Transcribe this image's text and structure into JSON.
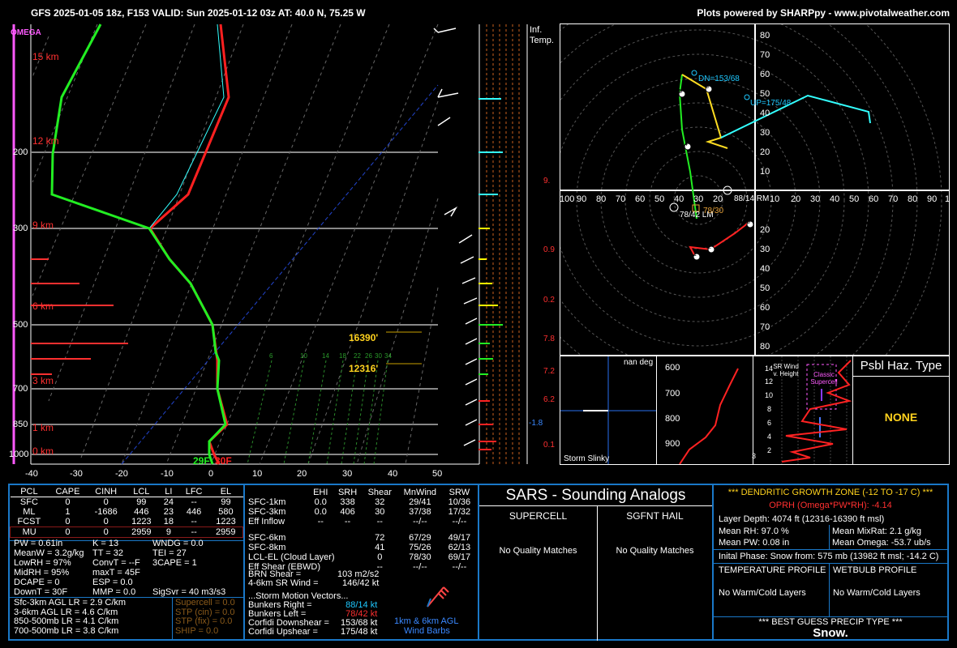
{
  "header": {
    "title": "GFS 2025-01-05 18z, F153  VALID: Sun 2025-01-12 03z  AT: 40.0 N, 75.25 W",
    "credit": "Plots powered by SHARPpy - www.pivotalweather.com"
  },
  "skewt": {
    "omega_label": "OMEGA",
    "pressure_labels": [
      "200",
      "300",
      "500",
      "700",
      "850",
      "1000"
    ],
    "height_labels": [
      "15 km",
      "12 km",
      "9 km",
      "6 km",
      "3 km",
      "1 km",
      "0 km"
    ],
    "temp_labels": [
      "-40",
      "-30",
      "-20",
      "-10",
      "0",
      "10",
      "20",
      "30",
      "40",
      "50"
    ],
    "mixing_labels": [
      "6",
      "10",
      "14",
      "18",
      "22",
      "26",
      "30",
      "34"
    ],
    "sfc_temp": "29F",
    "sfc_dew": "30F",
    "dgz_top": "16390'",
    "dgz_bot": "12316'"
  },
  "inferred": {
    "label_line1": "Inf.",
    "label_line2": "Temp.",
    "values": [
      "9.",
      "0.9",
      "0.2",
      "7.8",
      "7.2",
      "6.2",
      "0.1"
    ],
    "neg_value": "-1.8"
  },
  "hodograph": {
    "y_ticks": [
      "80",
      "70",
      "60",
      "50",
      "40",
      "30",
      "20",
      "10",
      "20",
      "30",
      "40",
      "50",
      "60",
      "70",
      "80"
    ],
    "x_ticks": [
      "100",
      "90",
      "80",
      "70",
      "60",
      "50",
      "40",
      "30",
      "20",
      "10",
      "10",
      "20",
      "30",
      "40",
      "50",
      "60",
      "70",
      "80",
      "90",
      "1"
    ],
    "dn_label": "DN=153/68",
    "up_label": "UP=175/48",
    "rm_label": "88/14 RM",
    "lm_label": "78/42 LM",
    "mean_label": "78/30",
    "points": [
      "1",
      "2",
      "5",
      "4",
      "3",
      "6"
    ]
  },
  "inset_slinky": {
    "title": "nan deg",
    "footer": "Storm Slinky"
  },
  "inset_theta": {
    "levels": [
      "600",
      "700",
      "800",
      "900"
    ]
  },
  "inset_wind": {
    "title": "SR Wind v. Height",
    "classic": "Classic Supercell",
    "y": [
      "14",
      "12",
      "10",
      "8",
      "6",
      "4",
      "2"
    ],
    "corner": "3"
  },
  "hazard": {
    "title": "Psbl Haz. Type",
    "value": "NONE"
  },
  "parcels": {
    "headers": [
      "PCL",
      "CAPE",
      "CINH",
      "LCL",
      "LI",
      "LFC",
      "EL"
    ],
    "rows": [
      [
        "SFC",
        "0",
        "0",
        "99",
        "24",
        "--",
        "99"
      ],
      [
        "ML",
        "1",
        "-1686",
        "446",
        "23",
        "446",
        "580"
      ],
      [
        "FCST",
        "0",
        "0",
        "1223",
        "18",
        "--",
        "1223"
      ],
      [
        "MU",
        "0",
        "0",
        "2959",
        "9",
        "--",
        "2959"
      ]
    ],
    "left_col": [
      "PW = 0.61in",
      "MeanW = 3.2g/kg",
      "LowRH = 97%",
      "MidRH = 95%",
      "DCAPE = 0",
      "DownT = 30F"
    ],
    "mid_col": [
      "K = 13",
      "TT = 32",
      "ConvT = --F",
      "maxT = 45F",
      "ESP = 0.0",
      "MMP = 0.0"
    ],
    "right_col": [
      "WNDG = 0.0",
      "TEI = 27",
      "3CAPE = 1",
      "",
      "",
      "SigSvr = 40 m3/s3"
    ],
    "lapse": [
      "Sfc-3km AGL LR = 2.9 C/km",
      "3-6km AGL LR = 4.6 C/km",
      "850-500mb LR = 4.1 C/km",
      "700-500mb LR = 3.8 C/km"
    ],
    "composites": [
      "Supercell = 0.0",
      "STP (cin) = 0.0",
      "STP (fix) = 0.0",
      "SHIP = 0.0"
    ]
  },
  "kinematics": {
    "headers": [
      "",
      "EHI",
      "SRH",
      "Shear",
      "MnWind",
      "SRW"
    ],
    "rows": [
      [
        "SFC-1km",
        "0.0",
        "338",
        "32",
        "29/41",
        "10/36"
      ],
      [
        "SFC-3km",
        "0.0",
        "406",
        "30",
        "37/38",
        "17/32"
      ],
      [
        "Eff Inflow",
        "--",
        "--",
        "--",
        "--/--",
        "--/--"
      ],
      [
        "",
        "",
        "",
        "",
        "",
        ""
      ],
      [
        "SFC-6km",
        "",
        "",
        "72",
        "67/29",
        "49/17"
      ],
      [
        "SFC-8km",
        "",
        "",
        "41",
        "75/26",
        "62/13"
      ],
      [
        "LCL-EL (Cloud Layer)",
        "",
        "",
        "0",
        "78/30",
        "69/17"
      ],
      [
        "Eff Shear (EBWD)",
        "",
        "",
        "--",
        "--/--",
        "--/--"
      ]
    ],
    "brn_label": "BRN Shear =",
    "brn_val": "103 m2/s2",
    "sr46_label": "4-6km SR Wind =",
    "sr46_val": "146/42 kt",
    "vectors_title": "...Storm Motion Vectors...",
    "vectors": [
      {
        "label": "Bunkers Right =",
        "value": "88/14 kt"
      },
      {
        "label": "Bunkers Left =",
        "value": "78/42 kt"
      },
      {
        "label": "Corfidi Downshear =",
        "value": "153/68 kt"
      },
      {
        "label": "Corfidi Upshear =",
        "value": "175/48 kt"
      }
    ],
    "barbs_caption1": "1km & 6km AGL",
    "barbs_caption2": "Wind Barbs"
  },
  "sars": {
    "title": "SARS - Sounding Analogs",
    "supercell": "SUPERCELL",
    "hail": "SGFNT HAIL",
    "no_match1": "No Quality Matches",
    "no_match2": "No Quality Matches"
  },
  "dgz": {
    "title": "*** DENDRITIC GROWTH ZONE (-12 TO -17 C) ***",
    "oprh": "OPRH (Omega*PW*RH): -4.14",
    "layer_depth": "Layer Depth: 4074 ft (12316-16390 ft msl)",
    "mean_rh": "Mean RH: 97.0 %",
    "mean_mixrat": "Mean MixRat: 2.1 g/kg",
    "mean_pw": "Mean PW: 0.08 in",
    "mean_omega": "Mean Omega: -53.7 ub/s",
    "initial_phase": "Inital Phase: Snow from: 575 mb (13982 ft msl; -14.2 C)",
    "temp_profile": "TEMPERATURE PROFILE",
    "wetbulb_profile": "WETBULB PROFILE",
    "no_layers1": "No Warm/Cold Layers",
    "no_layers2": "No Warm/Cold Layers",
    "precip_title": "*** BEST GUESS PRECIP TYPE ***",
    "precip_value": "Snow."
  }
}
